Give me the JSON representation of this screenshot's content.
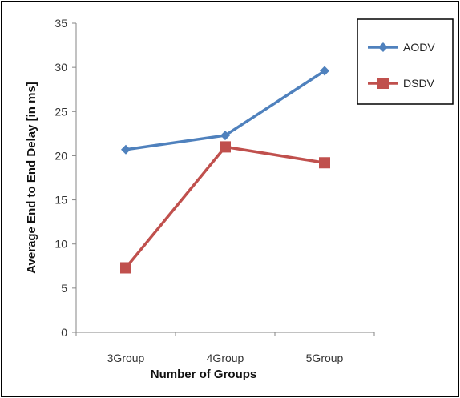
{
  "chart_data": {
    "type": "line",
    "categories": [
      "3Group",
      "4Group",
      "5Group"
    ],
    "series": [
      {
        "name": "AODV",
        "values": [
          20.7,
          22.3,
          29.6
        ],
        "color": "#4f81bd",
        "marker": "diamond"
      },
      {
        "name": "DSDV",
        "values": [
          7.3,
          21.0,
          19.2
        ],
        "color": "#c0504d",
        "marker": "square"
      }
    ],
    "xlabel": "Number of  Groups",
    "ylabel": "Average End to End Delay [in ms]",
    "ylim": [
      0,
      35
    ],
    "yticks": [
      0,
      5,
      10,
      15,
      20,
      25,
      30,
      35
    ],
    "grid": false,
    "legend_position": "top-right"
  }
}
